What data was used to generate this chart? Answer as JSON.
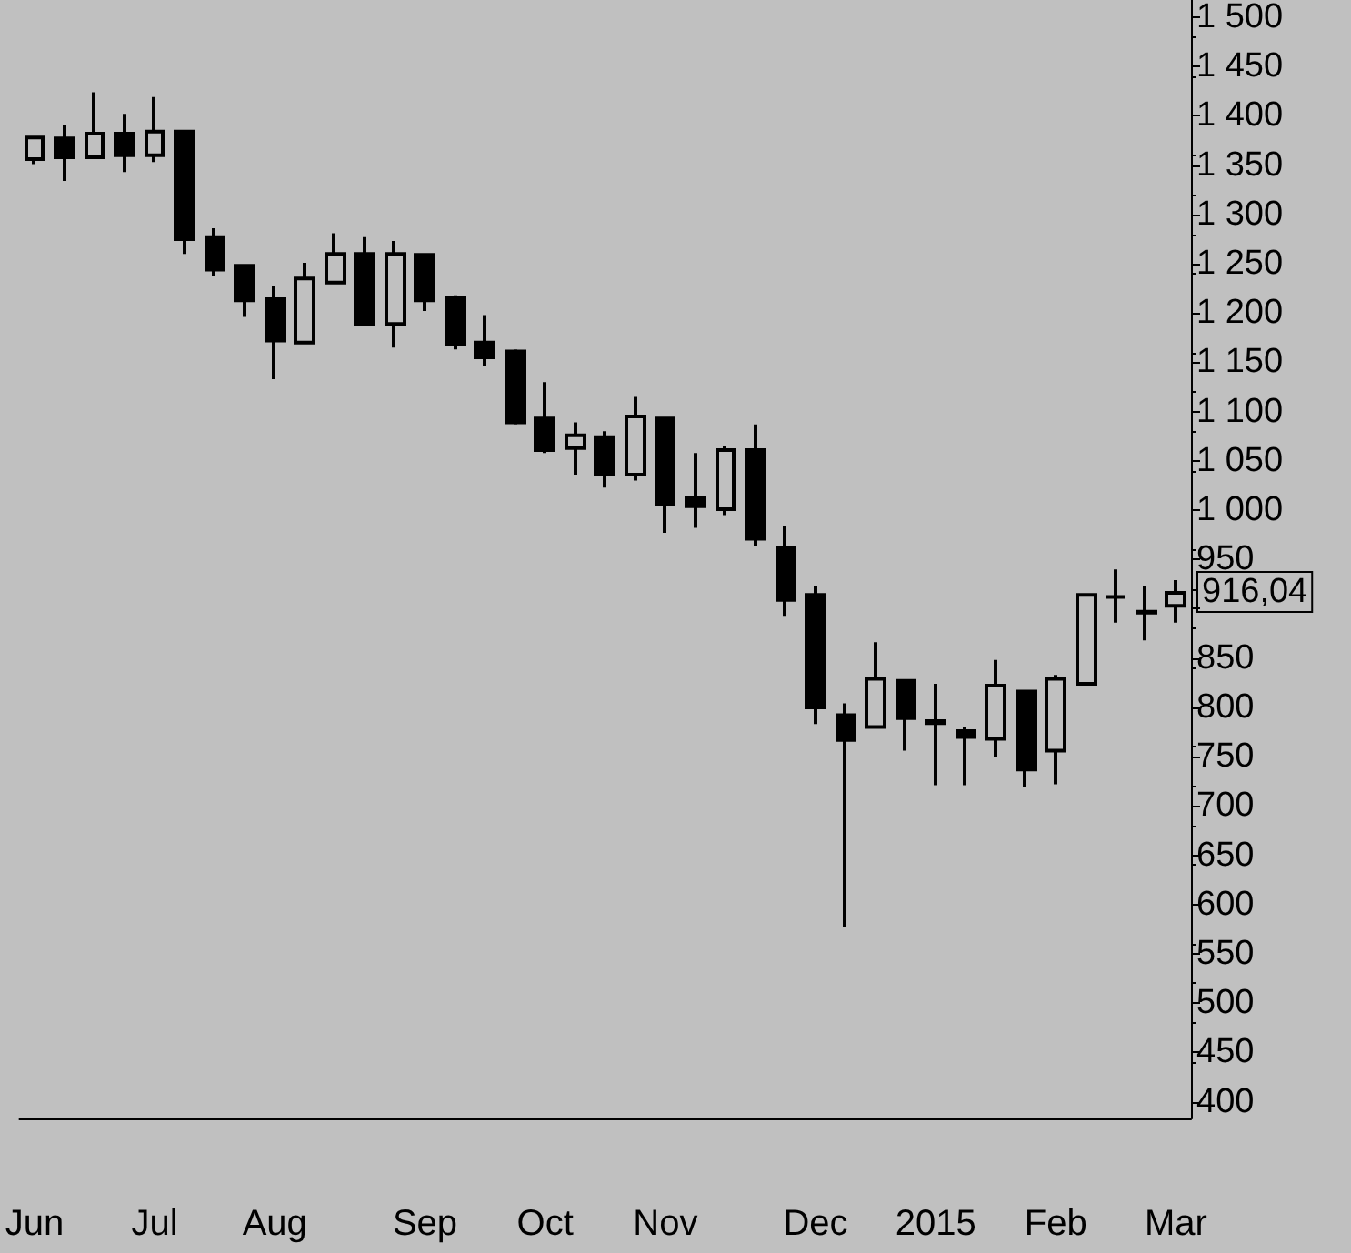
{
  "chart_data": {
    "type": "candlestick",
    "categories": [
      "Jun",
      null,
      null,
      null,
      "Jul",
      null,
      null,
      null,
      "Aug",
      null,
      null,
      null,
      null,
      "Sep",
      null,
      null,
      null,
      "Oct",
      null,
      null,
      null,
      "Nov",
      null,
      null,
      null,
      null,
      "Dec",
      null,
      null,
      null,
      "2015",
      null,
      null,
      null,
      "Feb",
      null,
      null,
      null,
      "Mar"
    ],
    "ohlc": [
      [
        1356,
        1378,
        1351,
        1378
      ],
      [
        1377,
        1391,
        1334,
        1358
      ],
      [
        1358,
        1424,
        1356,
        1382
      ],
      [
        1382,
        1402,
        1343,
        1360
      ],
      [
        1360,
        1419,
        1353,
        1384
      ],
      [
        1384,
        1384,
        1260,
        1275
      ],
      [
        1277,
        1286,
        1238,
        1244
      ],
      [
        1248,
        1248,
        1196,
        1213
      ],
      [
        1214,
        1227,
        1133,
        1172
      ],
      [
        1170,
        1251,
        1170,
        1235
      ],
      [
        1231,
        1281,
        1231,
        1260
      ],
      [
        1260,
        1277,
        1189,
        1189
      ],
      [
        1189,
        1273,
        1165,
        1260
      ],
      [
        1259,
        1259,
        1202,
        1213
      ],
      [
        1216,
        1218,
        1163,
        1168
      ],
      [
        1170,
        1198,
        1146,
        1155
      ],
      [
        1161,
        1163,
        1087,
        1089
      ],
      [
        1093,
        1130,
        1058,
        1061
      ],
      [
        1063,
        1089,
        1036,
        1076
      ],
      [
        1074,
        1080,
        1023,
        1036
      ],
      [
        1036,
        1115,
        1030,
        1095
      ],
      [
        1093,
        1093,
        977,
        1006
      ],
      [
        1012,
        1058,
        982,
        1004
      ],
      [
        1001,
        1065,
        995,
        1061
      ],
      [
        1061,
        1087,
        964,
        971
      ],
      [
        962,
        984,
        892,
        909
      ],
      [
        914,
        923,
        783,
        800
      ],
      [
        792,
        804,
        577,
        767
      ],
      [
        780,
        866,
        780,
        829
      ],
      [
        827,
        827,
        756,
        789
      ],
      [
        786,
        824,
        721,
        784
      ],
      [
        776,
        780,
        721,
        770
      ],
      [
        768,
        848,
        750,
        822
      ],
      [
        816,
        816,
        719,
        737
      ],
      [
        756,
        833,
        722,
        829
      ],
      [
        824,
        914,
        822,
        914
      ],
      [
        912,
        940,
        886,
        912
      ],
      [
        897,
        923,
        868,
        896
      ],
      [
        903,
        929,
        886,
        916.04
      ]
    ],
    "ylim": [
      383,
      1517
    ],
    "yticks": [
      400,
      450,
      500,
      550,
      600,
      650,
      700,
      750,
      800,
      850,
      {
        "value": 900,
        "label": null
      },
      950,
      {
        "value": 1000,
        "label": "1 000"
      },
      {
        "value": 1050,
        "label": "1 050"
      },
      {
        "value": 1100,
        "label": "1 100"
      },
      {
        "value": 1150,
        "label": "1 150"
      },
      {
        "value": 1200,
        "label": "1 200"
      },
      {
        "value": 1250,
        "label": "1 250"
      },
      {
        "value": 1300,
        "label": "1 300"
      },
      {
        "value": 1350,
        "label": "1 350"
      },
      {
        "value": 1400,
        "label": "1 400"
      },
      {
        "value": 1450,
        "label": "1 450"
      },
      {
        "value": 1500,
        "label": "1 500"
      }
    ],
    "annotations": [
      "916,04"
    ],
    "grid": false
  }
}
